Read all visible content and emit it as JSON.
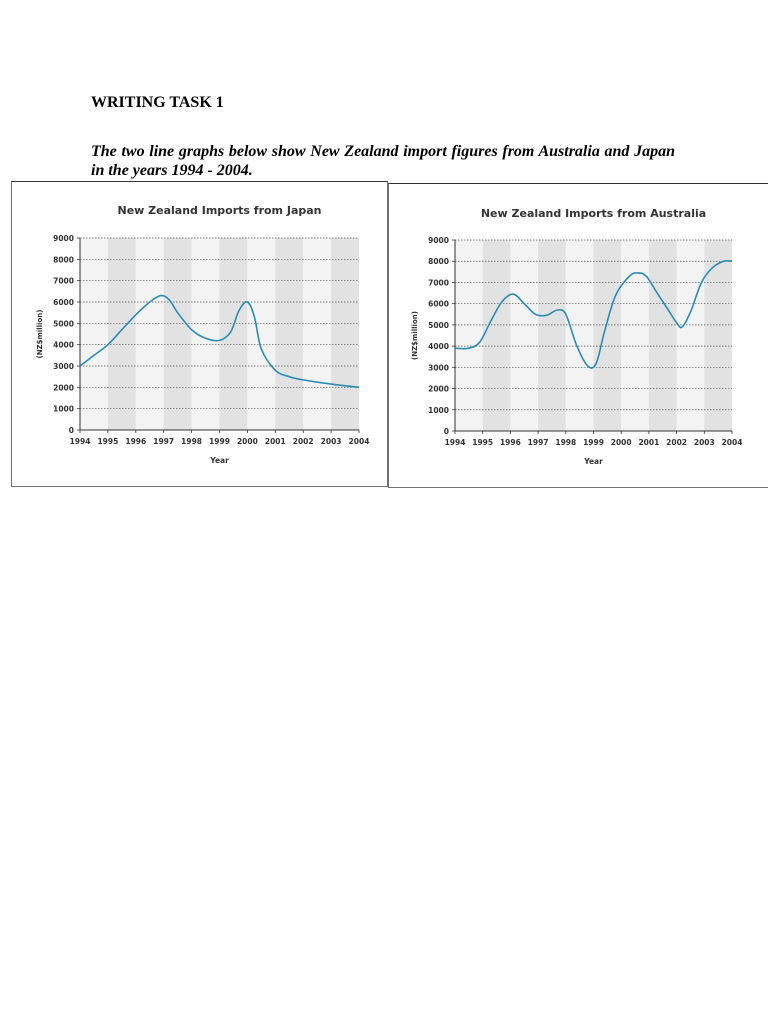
{
  "heading": "WRITING TASK 1",
  "intro": "The two line graphs below show New Zealand import figures from Australia and Japan in the years 1994 - 2004.",
  "chart_data": [
    {
      "type": "line",
      "title": "New Zealand Imports from Japan",
      "xlabel": "Year",
      "ylabel": "(NZ$million)",
      "categories": [
        "1994",
        "1995",
        "1996",
        "1997",
        "1998",
        "1999",
        "2000",
        "2001",
        "2002",
        "2003",
        "2004"
      ],
      "yticks": [
        "0",
        "1000",
        "2000",
        "3000",
        "4000",
        "5000",
        "6000",
        "7000",
        "8000",
        "9000"
      ],
      "ylim": [
        0,
        9000
      ],
      "xlim": [
        1994,
        2004
      ],
      "grid": true,
      "line_color": "#2a8bb5",
      "points": [
        [
          1994.0,
          3000
        ],
        [
          1994.5,
          3500
        ],
        [
          1995.0,
          4000
        ],
        [
          1995.5,
          4700
        ],
        [
          1996.0,
          5400
        ],
        [
          1996.5,
          6000
        ],
        [
          1996.9,
          6300
        ],
        [
          1997.2,
          6100
        ],
        [
          1997.5,
          5500
        ],
        [
          1998.0,
          4700
        ],
        [
          1998.5,
          4300
        ],
        [
          1999.0,
          4200
        ],
        [
          1999.4,
          4600
        ],
        [
          1999.7,
          5600
        ],
        [
          2000.0,
          6000
        ],
        [
          2000.25,
          5300
        ],
        [
          2000.5,
          3800
        ],
        [
          2001.0,
          2800
        ],
        [
          2001.5,
          2500
        ],
        [
          2002.0,
          2350
        ],
        [
          2003.0,
          2150
        ],
        [
          2004.0,
          2000
        ]
      ]
    },
    {
      "type": "line",
      "title": "New Zealand Imports from Australia",
      "xlabel": "Year",
      "ylabel": "(NZ$million)",
      "categories": [
        "1994",
        "1995",
        "1996",
        "1997",
        "1998",
        "1999",
        "2000",
        "2001",
        "2002",
        "2003",
        "2004"
      ],
      "yticks": [
        "0",
        "1000",
        "2000",
        "3000",
        "4000",
        "5000",
        "6000",
        "7000",
        "8000",
        "9000"
      ],
      "ylim": [
        0,
        9000
      ],
      "xlim": [
        1994,
        2004
      ],
      "grid": true,
      "line_color": "#2a8bb5",
      "points": [
        [
          1994.0,
          3900
        ],
        [
          1994.5,
          3900
        ],
        [
          1994.9,
          4200
        ],
        [
          1995.3,
          5200
        ],
        [
          1995.7,
          6100
        ],
        [
          1996.1,
          6450
        ],
        [
          1996.5,
          6000
        ],
        [
          1996.9,
          5500
        ],
        [
          1997.3,
          5450
        ],
        [
          1997.7,
          5700
        ],
        [
          1998.0,
          5500
        ],
        [
          1998.4,
          4000
        ],
        [
          1998.8,
          3050
        ],
        [
          1999.1,
          3200
        ],
        [
          1999.4,
          4700
        ],
        [
          1999.8,
          6400
        ],
        [
          2000.3,
          7300
        ],
        [
          2000.6,
          7450
        ],
        [
          2000.9,
          7300
        ],
        [
          2001.3,
          6500
        ],
        [
          2001.7,
          5700
        ],
        [
          2002.0,
          5100
        ],
        [
          2002.2,
          4900
        ],
        [
          2002.5,
          5600
        ],
        [
          2002.9,
          7000
        ],
        [
          2003.3,
          7700
        ],
        [
          2003.7,
          8000
        ],
        [
          2004.0,
          8000
        ]
      ]
    }
  ]
}
